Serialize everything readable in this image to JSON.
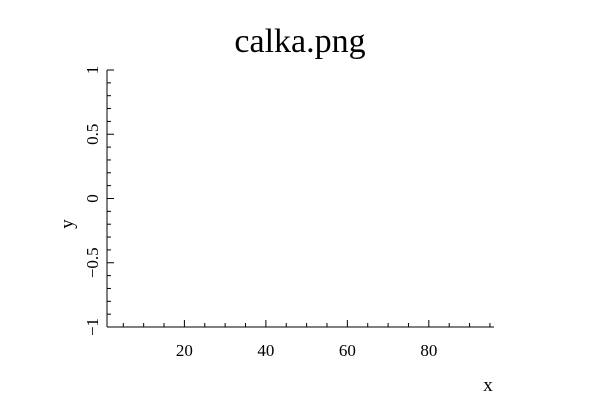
{
  "chart_data": {
    "type": "line",
    "title": "calka.png",
    "xlabel": "x",
    "ylabel": "y",
    "xlim": [
      1,
      96
    ],
    "ylim": [
      -1,
      1
    ],
    "x_ticks": [
      20,
      40,
      60,
      80
    ],
    "y_ticks": [
      -1,
      -0.5,
      0,
      0.5,
      1
    ],
    "x_tick_labels": [
      "20",
      "40",
      "60",
      "80"
    ],
    "y_tick_labels": [
      "−1",
      "−0.5",
      "0",
      "0.5",
      "1"
    ],
    "x_minor_step": 5,
    "y_minor_step": 0.1,
    "series": [],
    "grid": false,
    "legend": "none"
  }
}
